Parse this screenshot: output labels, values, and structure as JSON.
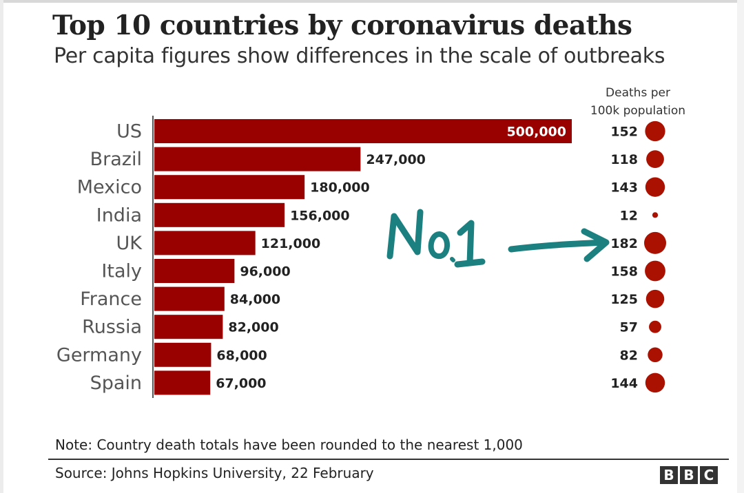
{
  "title": "Top 10 countries by coronavirus deaths",
  "subtitle": "Per capita figures show differences in the scale of outbreaks",
  "rate_header_line1": "Deaths per",
  "rate_header_line2": "100k population",
  "note": "Note: Country death totals have been rounded to the nearest 1,000",
  "source": "Source: Johns Hopkins University, 22 February",
  "logo_letters": [
    "B",
    "B",
    "C"
  ],
  "annotation": {
    "text": "No.1",
    "color": "#1d8080"
  },
  "colors": {
    "bar": "#990000",
    "dot": "#aa1100"
  },
  "chart_data": {
    "type": "bar",
    "orientation": "horizontal",
    "categories": [
      "US",
      "Brazil",
      "Mexico",
      "India",
      "UK",
      "Italy",
      "France",
      "Russia",
      "Germany",
      "Spain"
    ],
    "values": [
      500000,
      247000,
      180000,
      156000,
      121000,
      96000,
      84000,
      82000,
      68000,
      67000
    ],
    "value_labels": [
      "500,000",
      "247,000",
      "180,000",
      "156,000",
      "121,000",
      "96,000",
      "84,000",
      "82,000",
      "68,000",
      "67,000"
    ],
    "deaths_per_100k": [
      152,
      118,
      143,
      12,
      182,
      158,
      125,
      57,
      82,
      144
    ],
    "xlim": [
      0,
      500000
    ],
    "grid": false,
    "legend": "none"
  }
}
